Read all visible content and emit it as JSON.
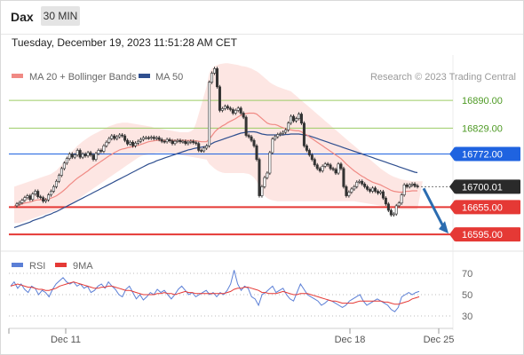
{
  "header": {
    "symbol": "Dax",
    "timeframe": "30 MIN",
    "datetime": "Tuesday, December 19, 2023 11:51:28 AM CET"
  },
  "legend": {
    "ma20_label": "MA 20 + Bollinger Bands",
    "ma50_label": "MA 50",
    "copyright": "Research © 2023 Trading Central"
  },
  "colors": {
    "ma20": "#f08a84",
    "ma50": "#2f4f8f",
    "bollinger_fill": "#fde2de",
    "resistance_green": "#9ccc65",
    "support_red": "#e53935",
    "pivot_blue": "#1f63e0",
    "price_bar": "#333333",
    "up_candle": "#cc3333",
    "rsi": "#5b7fd6",
    "rsi_ma": "#e53935",
    "arrow": "#2b6cb0"
  },
  "chart_data": [
    {
      "type": "candlestick",
      "panel": "price",
      "y_range": [
        16560,
        16990
      ],
      "x_labels": [
        "Dec 11",
        "Dec 18",
        "Dec 25"
      ],
      "levels": [
        {
          "label": "16890.00",
          "value": 16890,
          "kind": "resistance"
        },
        {
          "label": "16829.00",
          "value": 16829,
          "kind": "resistance"
        },
        {
          "label": "16772.00",
          "value": 16772,
          "kind": "pivot"
        },
        {
          "label": "16700.01",
          "value": 16700.01,
          "kind": "last"
        },
        {
          "label": "16655.00",
          "value": 16655,
          "kind": "support"
        },
        {
          "label": "16595.00",
          "value": 16595,
          "kind": "support"
        }
      ],
      "close": [
        16658,
        16662,
        16665,
        16670,
        16676,
        16680,
        16672,
        16684,
        16690,
        16678,
        16676,
        16668,
        16671,
        16682,
        16690,
        16700,
        16712,
        16725,
        16740,
        16752,
        16762,
        16772,
        16765,
        16770,
        16780,
        16765,
        16772,
        16768,
        16775,
        16770,
        16760,
        16773,
        16780,
        16778,
        16790,
        16798,
        16806,
        16812,
        16806,
        16810,
        16814,
        16812,
        16802,
        16794,
        16798,
        16790,
        16796,
        16800,
        16804,
        16808,
        16808,
        16807,
        16809,
        16806,
        16808,
        16804,
        16800,
        16799,
        16804,
        16801,
        16795,
        16800,
        16802,
        16799,
        16800,
        16795,
        16798,
        16800,
        16797,
        16795,
        16780,
        16779,
        16785,
        16790,
        16930,
        16950,
        16960,
        16920,
        16868,
        16872,
        16877,
        16873,
        16870,
        16862,
        16868,
        16873,
        16862,
        16853,
        16813,
        16810,
        16802,
        16790,
        16760,
        16680,
        16700,
        16720,
        16730,
        16775,
        16805,
        16810,
        16815,
        16817,
        16820,
        16825,
        16840,
        16855,
        16845,
        16850,
        16860,
        16840,
        16790,
        16780,
        16770,
        16760,
        16748,
        16740,
        16735,
        16745,
        16750,
        16748,
        16740,
        16738,
        16730,
        16750,
        16740,
        16700,
        16680,
        16688,
        16695,
        16700,
        16710,
        16712,
        16706,
        16700,
        16694,
        16690,
        16697,
        16690,
        16686,
        16689,
        16675,
        16662,
        16648,
        16638,
        16640,
        16658,
        16664,
        16682,
        16704,
        16700,
        16704,
        16706,
        16702,
        16700
      ],
      "ma20": [
        16658,
        16659,
        16660,
        16662,
        16664,
        16665,
        16666,
        16668,
        16670,
        16671,
        16671,
        16672,
        16672,
        16673,
        16675,
        16677,
        16680,
        16684,
        16688,
        16693,
        16698,
        16704,
        16709,
        16714,
        16719,
        16723,
        16727,
        16731,
        16735,
        16740,
        16744,
        16748,
        16752,
        16756,
        16760,
        16764,
        16768,
        16771,
        16775,
        16778,
        16781,
        16783,
        16784,
        16786,
        16787,
        16788,
        16790,
        16791,
        16793,
        16795,
        16797,
        16799,
        16800,
        16801,
        16802,
        16802,
        16802,
        16802,
        16802,
        16802,
        16802,
        16802,
        16802,
        16802,
        16802,
        16802,
        16802,
        16802,
        16801,
        16801,
        16800,
        16799,
        16799,
        16799,
        16805,
        16812,
        16820,
        16826,
        16830,
        16834,
        16837,
        16841,
        16844,
        16847,
        16850,
        16854,
        16857,
        16860,
        16861,
        16862,
        16862,
        16862,
        16860,
        16855,
        16850,
        16845,
        16840,
        16838,
        16837,
        16837,
        16835,
        16832,
        16830,
        16828,
        16826,
        16825,
        16824,
        16823,
        16823,
        16821,
        16817,
        16814,
        16810,
        16806,
        16802,
        16798,
        16794,
        16790,
        16786,
        16782,
        16778,
        16774,
        16770,
        16766,
        16762,
        16756,
        16750,
        16745,
        16740,
        16735,
        16731,
        16727,
        16723,
        16720,
        16716,
        16713,
        16710,
        16708,
        16706,
        16704,
        16701,
        16698,
        16695,
        16692,
        16690,
        16689,
        16688,
        16688,
        16689,
        16690,
        16690,
        16691,
        16691,
        16691
      ],
      "ma50": [
        16610,
        16612,
        16614,
        16616,
        16618,
        16620,
        16622,
        16625,
        16627,
        16629,
        16631,
        16633,
        16636,
        16638,
        16640,
        16643,
        16645,
        16648,
        16651,
        16654,
        16657,
        16660,
        16663,
        16666,
        16669,
        16672,
        16675,
        16678,
        16681,
        16684,
        16687,
        16690,
        16693,
        16696,
        16699,
        16702,
        16705,
        16708,
        16711,
        16714,
        16717,
        16720,
        16723,
        16726,
        16729,
        16732,
        16735,
        16738,
        16741,
        16744,
        16747,
        16750,
        16752,
        16754,
        16757,
        16759,
        16761,
        16763,
        16765,
        16767,
        16769,
        16771,
        16773,
        16775,
        16777,
        16779,
        16781,
        16782,
        16784,
        16785,
        16786,
        16787,
        16788,
        16789,
        16792,
        16795,
        16798,
        16800,
        16802,
        16804,
        16806,
        16808,
        16810,
        16812,
        16814,
        16816,
        16818,
        16819,
        16820,
        16821,
        16821,
        16821,
        16820,
        16818,
        16816,
        16815,
        16814,
        16814,
        16814,
        16814,
        16814,
        16814,
        16814,
        16815,
        16815,
        16816,
        16816,
        16816,
        16816,
        16815,
        16814,
        16813,
        16812,
        16810,
        16808,
        16806,
        16804,
        16802,
        16800,
        16798,
        16796,
        16794,
        16792,
        16790,
        16788,
        16786,
        16784,
        16782,
        16780,
        16778,
        16776,
        16774,
        16772,
        16770,
        16768,
        16766,
        16764,
        16762,
        16760,
        16758,
        16756,
        16754,
        16752,
        16750,
        16748,
        16746,
        16744,
        16742,
        16740,
        16738,
        16736,
        16734,
        16732,
        16731
      ],
      "bollinger_upper": [
        16700,
        16702,
        16704,
        16706,
        16708,
        16710,
        16712,
        16714,
        16716,
        16718,
        16720,
        16722,
        16724,
        16726,
        16728,
        16732,
        16736,
        16742,
        16748,
        16756,
        16764,
        16772,
        16778,
        16784,
        16790,
        16795,
        16800,
        16804,
        16808,
        16812,
        16815,
        16818,
        16821,
        16824,
        16827,
        16830,
        16833,
        16835,
        16837,
        16839,
        16840,
        16841,
        16841,
        16841,
        16840,
        16839,
        16838,
        16837,
        16836,
        16835,
        16834,
        16833,
        16832,
        16830,
        16829,
        16828,
        16827,
        16826,
        16825,
        16824,
        16823,
        16822,
        16821,
        16820,
        16820,
        16820,
        16820,
        16822,
        16826,
        16840,
        16860,
        16880,
        16900,
        16920,
        16950,
        16960,
        16965,
        16968,
        16970,
        16971,
        16972,
        16972,
        16971,
        16970,
        16969,
        16968,
        16966,
        16965,
        16964,
        16962,
        16960,
        16957,
        16954,
        16950,
        16945,
        16940,
        16935,
        16930,
        16926,
        16923,
        16920,
        16918,
        16916,
        16914,
        16912,
        16910,
        16905,
        16900,
        16895,
        16890,
        16885,
        16880,
        16875,
        16870,
        16865,
        16860,
        16855,
        16850,
        16845,
        16840,
        16835,
        16830,
        16825,
        16820,
        16815,
        16810,
        16805,
        16800,
        16795,
        16790,
        16785,
        16780,
        16775,
        16770,
        16765,
        16760,
        16755,
        16750,
        16745,
        16740,
        16736,
        16732,
        16728,
        16725,
        16722,
        16720,
        16718,
        16716,
        16715,
        16714,
        16713,
        16712,
        16712,
        16712,
        16712,
        16712
      ],
      "bollinger_lower": [
        16620,
        16620,
        16620,
        16622,
        16624,
        16626,
        16628,
        16630,
        16632,
        16634,
        16636,
        16638,
        16640,
        16642,
        16644,
        16646,
        16648,
        16650,
        16652,
        16655,
        16658,
        16661,
        16664,
        16668,
        16672,
        16676,
        16680,
        16684,
        16688,
        16692,
        16696,
        16700,
        16704,
        16708,
        16712,
        16716,
        16720,
        16724,
        16728,
        16732,
        16736,
        16740,
        16744,
        16748,
        16752,
        16756,
        16760,
        16764,
        16767,
        16769,
        16770,
        16771,
        16772,
        16773,
        16774,
        16774,
        16774,
        16774,
        16774,
        16774,
        16773,
        16772,
        16771,
        16770,
        16769,
        16768,
        16767,
        16766,
        16765,
        16764,
        16763,
        16762,
        16761,
        16760,
        16750,
        16745,
        16740,
        16736,
        16733,
        16731,
        16730,
        16730,
        16730,
        16730,
        16730,
        16730,
        16730,
        16730,
        16729,
        16728,
        16725,
        16720,
        16712,
        16700,
        16690,
        16680,
        16675,
        16672,
        16670,
        16669,
        16668,
        16668,
        16668,
        16668,
        16668,
        16668,
        16668,
        16668,
        16668,
        16668,
        16668,
        16668,
        16668,
        16668,
        16668,
        16668,
        16668,
        16668,
        16668,
        16668,
        16668,
        16668,
        16668,
        16668,
        16668,
        16668,
        16668,
        16668,
        16668,
        16668,
        16667,
        16666,
        16665,
        16664,
        16663,
        16662,
        16661,
        16660,
        16659,
        16658,
        16657,
        16656,
        16655,
        16654,
        16653,
        16652,
        16651,
        16650,
        16650,
        16650,
        16650,
        16650,
        16650,
        16650
      ]
    },
    {
      "type": "line",
      "panel": "rsi",
      "y_range": [
        20,
        80
      ],
      "y_ticks": [
        "70",
        "50",
        "30"
      ],
      "series": [
        {
          "name": "RSI",
          "values": [
            58,
            62,
            56,
            60,
            55,
            52,
            58,
            56,
            50,
            54,
            52,
            48,
            55,
            60,
            63,
            66,
            62,
            60,
            62,
            58,
            60,
            56,
            58,
            52,
            54,
            58,
            60,
            56,
            62,
            58,
            55,
            50,
            48,
            55,
            58,
            52,
            46,
            50,
            45,
            48,
            52,
            50,
            55,
            52,
            54,
            50,
            46,
            50,
            55,
            58,
            54,
            50,
            52,
            48,
            50,
            52,
            54,
            50,
            52,
            48,
            52,
            50,
            54,
            60,
            73,
            60,
            54,
            58,
            56,
            48,
            46,
            40,
            50,
            52,
            55,
            58,
            52,
            54,
            56,
            50,
            46,
            44,
            52,
            60,
            55,
            50,
            48,
            46,
            44,
            40,
            42,
            45,
            44,
            42,
            40,
            38,
            40,
            44,
            46,
            48,
            50,
            44,
            40,
            42,
            44,
            46,
            44,
            42,
            40,
            36,
            34,
            38,
            48,
            50,
            52,
            50,
            52,
            53
          ]
        },
        {
          "name": "9MA",
          "values": [
            58,
            59,
            60,
            59,
            58,
            57,
            57,
            56,
            55,
            55,
            54,
            54,
            55,
            56,
            58,
            59,
            60,
            61,
            62,
            61,
            60,
            59,
            58,
            57,
            56,
            56,
            57,
            57,
            58,
            58,
            57,
            56,
            55,
            54,
            54,
            53,
            52,
            51,
            50,
            50,
            50,
            50,
            51,
            51,
            52,
            51,
            51,
            50,
            51,
            52,
            53,
            52,
            52,
            51,
            51,
            51,
            51,
            51,
            51,
            51,
            51,
            51,
            52,
            53,
            55,
            56,
            56,
            57,
            57,
            56,
            55,
            54,
            52,
            52,
            51,
            51,
            51,
            52,
            53,
            52,
            51,
            50,
            50,
            51,
            51,
            51,
            50,
            49,
            48,
            47,
            46,
            45,
            44,
            44,
            43,
            42,
            42,
            42,
            42,
            43,
            44,
            44,
            44,
            44,
            44,
            44,
            44,
            43,
            43,
            42,
            41,
            41,
            42,
            43,
            44,
            46,
            47,
            48
          ]
        }
      ]
    }
  ]
}
